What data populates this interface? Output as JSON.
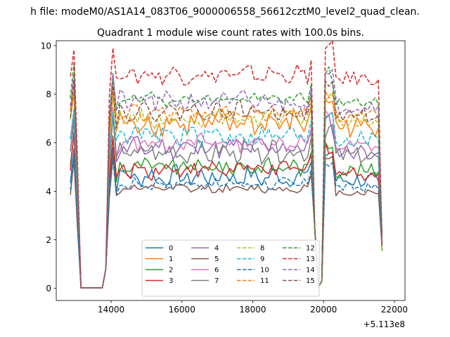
{
  "figure": {
    "suptitle": "h file: modeM0/AS1A14_083T06_9000006558_56612cztM0_level2_quad_clean.",
    "offset_label": "+5.113e8"
  },
  "chart_data": {
    "type": "line",
    "title": "Quadrant 1 module wise count rates with 100.0s bins.",
    "xlabel": "",
    "ylabel": "",
    "x_offset": 511300000,
    "xlim": [
      12450,
      22300
    ],
    "ylim": [
      -0.5,
      10.2
    ],
    "xticks": [
      14000,
      16000,
      18000,
      20000,
      22000
    ],
    "xtick_labels": [
      "14000",
      "16000",
      "18000",
      "20000",
      "22000"
    ],
    "yticks": [
      0,
      2,
      4,
      6,
      8,
      10
    ],
    "ytick_labels": [
      "0",
      "2",
      "4",
      "6",
      "8",
      "10"
    ],
    "x_start": 12850,
    "x_step": 100,
    "grid": false,
    "legend": {
      "location": "lower center",
      "ncol": 4
    },
    "series": [
      {
        "name": "0",
        "color": "#1f77b4",
        "dash": "solid",
        "base": 4.6,
        "amp": 0.35
      },
      {
        "name": "1",
        "color": "#ff7f0e",
        "dash": "solid",
        "base": 6.8,
        "amp": 0.45
      },
      {
        "name": "2",
        "color": "#2ca02c",
        "dash": "solid",
        "base": 5.0,
        "amp": 0.3
      },
      {
        "name": "3",
        "color": "#d62728",
        "dash": "solid",
        "base": 4.9,
        "amp": 0.3
      },
      {
        "name": "4",
        "color": "#9467bd",
        "dash": "solid",
        "base": 5.8,
        "amp": 0.35
      },
      {
        "name": "5",
        "color": "#8c564b",
        "dash": "solid",
        "base": 4.1,
        "amp": 0.15
      },
      {
        "name": "6",
        "color": "#e377c2",
        "dash": "solid",
        "base": 6.0,
        "amp": 0.3
      },
      {
        "name": "7",
        "color": "#7f7f7f",
        "dash": "solid",
        "base": 5.6,
        "amp": 0.35
      },
      {
        "name": "8",
        "color": "#bcbd22",
        "dash": "dashed",
        "base": 7.0,
        "amp": 0.3
      },
      {
        "name": "9",
        "color": "#17becf",
        "dash": "dashed",
        "base": 6.3,
        "amp": 0.35
      },
      {
        "name": "10",
        "color": "#1f77b4",
        "dash": "dashed",
        "base": 4.3,
        "amp": 0.2
      },
      {
        "name": "11",
        "color": "#ff7f0e",
        "dash": "dashed",
        "base": 7.2,
        "amp": 0.3
      },
      {
        "name": "12",
        "color": "#2ca02c",
        "dash": "dashed",
        "base": 7.8,
        "amp": 0.2
      },
      {
        "name": "13",
        "color": "#d62728",
        "dash": "dashed",
        "base": 8.8,
        "amp": 0.3
      },
      {
        "name": "14",
        "color": "#9467bd",
        "dash": "dashed",
        "base": 7.7,
        "amp": 0.35
      },
      {
        "name": "15",
        "color": "#8c564b",
        "dash": "dashed",
        "base": 7.3,
        "amp": 0.3
      }
    ]
  }
}
